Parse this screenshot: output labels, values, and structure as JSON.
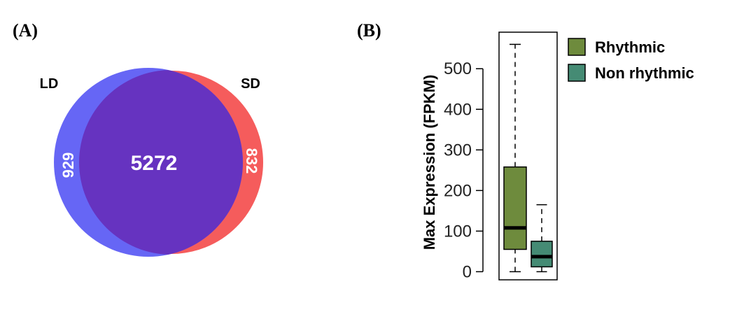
{
  "chart_data": [
    {
      "panel_label": "(A)",
      "type": "venn",
      "sets": [
        {
          "name": "LD",
          "only": 929,
          "color": "#6666f5"
        },
        {
          "name": "SD",
          "only": 832,
          "color": "#f55c5c"
        }
      ],
      "overlap": 5272,
      "overlap_color": "#6633c0"
    },
    {
      "panel_label": "(B)",
      "type": "boxplot",
      "ylabel": "Max Expression (FPKM)",
      "ylim": [
        -20,
        590
      ],
      "yticks": [
        0,
        100,
        200,
        300,
        400,
        500
      ],
      "series": [
        {
          "name": "Rhythmic",
          "color": "#6e8b3d",
          "min": 0,
          "q1": 55,
          "median": 108,
          "q3": 258,
          "max": 560
        },
        {
          "name": "Non rhythmic",
          "color": "#458b74",
          "min": 0,
          "q1": 12,
          "median": 37,
          "q3": 75,
          "max": 165
        }
      ],
      "legend_position": "top-right"
    }
  ]
}
